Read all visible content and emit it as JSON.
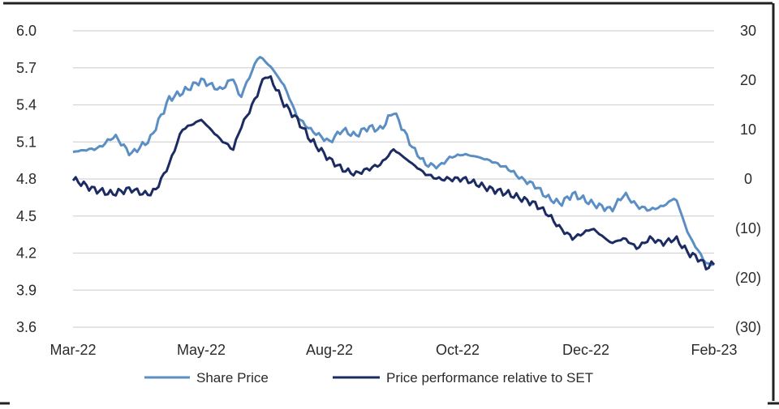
{
  "chart_data": {
    "type": "line",
    "title": "",
    "xlabel": "",
    "ylabel": "",
    "x_ticks": [
      "Mar-22",
      "May-22",
      "Aug-22",
      "Oct-22",
      "Dec-22",
      "Feb-23"
    ],
    "left_axis": {
      "ylim": [
        3.6,
        6.0
      ],
      "tick_values": [
        6.0,
        5.7,
        5.4,
        5.1,
        4.8,
        4.5,
        4.2,
        3.9,
        3.6
      ],
      "tick_labels": [
        "6.0",
        "5.7",
        "5.4",
        "5.1",
        "4.8",
        "4.5",
        "4.2",
        "3.9",
        "3.6"
      ]
    },
    "right_axis": {
      "ylim": [
        -30,
        30
      ],
      "tick_values": [
        30,
        20,
        10,
        0,
        -10,
        -20,
        -30
      ],
      "tick_labels": [
        "30",
        "20",
        "10",
        "0",
        "(10)",
        "(20)",
        "(30)"
      ]
    },
    "grid": true,
    "legend_position": "bottom",
    "series": [
      {
        "name": "Share Price",
        "axis": "left",
        "color": "#5b8fc4",
        "t": [
          0,
          0.04,
          0.065,
          0.09,
          0.12,
          0.15,
          0.17,
          0.2,
          0.23,
          0.25,
          0.26,
          0.29,
          0.31,
          0.33,
          0.35,
          0.37,
          0.4,
          0.42,
          0.44,
          0.46,
          0.48,
          0.5,
          0.53,
          0.55,
          0.57,
          0.59,
          0.61,
          0.63,
          0.65,
          0.68,
          0.7,
          0.72,
          0.74,
          0.76,
          0.78,
          0.81,
          0.84,
          0.86,
          0.88,
          0.9,
          0.92,
          0.94,
          0.96,
          0.975,
          0.99,
          1.0
        ],
        "values": [
          5.02,
          5.05,
          5.15,
          5.0,
          5.12,
          5.45,
          5.5,
          5.6,
          5.52,
          5.62,
          5.45,
          5.8,
          5.7,
          5.55,
          5.3,
          5.2,
          5.1,
          5.2,
          5.15,
          5.22,
          5.2,
          5.35,
          5.05,
          4.92,
          4.9,
          4.98,
          5.0,
          4.98,
          4.95,
          4.88,
          4.8,
          4.75,
          4.65,
          4.6,
          4.68,
          4.6,
          4.55,
          4.68,
          4.58,
          4.55,
          4.58,
          4.65,
          4.35,
          4.22,
          4.1,
          4.12
        ]
      },
      {
        "name": "Price performance relative to SET",
        "axis": "right",
        "color": "#1c2c62",
        "t": [
          0,
          0.03,
          0.06,
          0.09,
          0.11,
          0.12,
          0.13,
          0.15,
          0.17,
          0.2,
          0.23,
          0.25,
          0.26,
          0.28,
          0.3,
          0.31,
          0.33,
          0.35,
          0.37,
          0.4,
          0.42,
          0.44,
          0.46,
          0.48,
          0.5,
          0.53,
          0.55,
          0.57,
          0.59,
          0.61,
          0.63,
          0.65,
          0.68,
          0.7,
          0.72,
          0.74,
          0.76,
          0.78,
          0.81,
          0.84,
          0.86,
          0.88,
          0.9,
          0.92,
          0.94,
          0.96,
          0.975,
          0.99,
          1.0
        ],
        "values": [
          0,
          -2,
          -3,
          -2,
          -3,
          -3,
          -2,
          3,
          10,
          12,
          8,
          6,
          10,
          15,
          21,
          20,
          15,
          12,
          8,
          4,
          2,
          1,
          2,
          3,
          6,
          3,
          1,
          0,
          0,
          0,
          -1,
          -2,
          -3,
          -4,
          -5,
          -7,
          -10,
          -12,
          -10,
          -13,
          -12,
          -14,
          -12,
          -13,
          -12,
          -15,
          -16,
          -18,
          -17
        ]
      }
    ]
  }
}
